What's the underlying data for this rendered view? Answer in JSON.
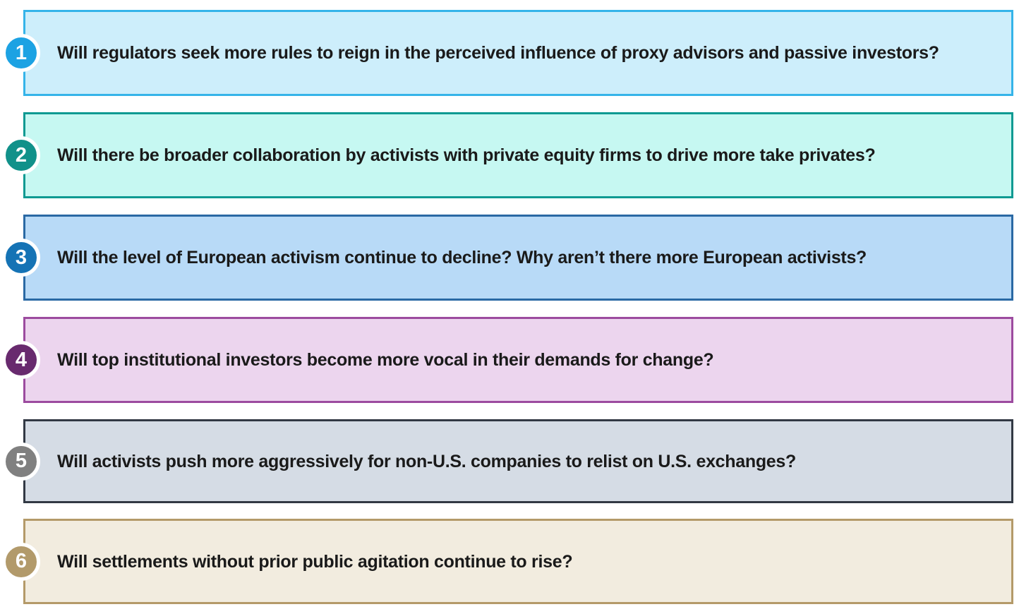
{
  "text_color": "#1a1a1a",
  "badge_text_color": "#ffffff",
  "questions": [
    {
      "number": "1",
      "text": "Will regulators seek more rules to reign in the perceived influence of proxy advisors and passive investors?",
      "colors": {
        "bg": "#cdeefb",
        "border": "#35b4e9",
        "badge": "#1ca2e3"
      }
    },
    {
      "number": "2",
      "text": "Will there be broader collaboration by activists with private equity firms to drive more take privates?",
      "colors": {
        "bg": "#c6f8f2",
        "border": "#0d9a92",
        "badge": "#11918a"
      }
    },
    {
      "number": "3",
      "text": "Will the level of European activism continue to decline? Why aren’t there more European activists?",
      "colors": {
        "bg": "#b8daf7",
        "border": "#2a69a4",
        "badge": "#1573b5"
      }
    },
    {
      "number": "4",
      "text": "Will top institutional investors become more vocal in their demands for change?",
      "colors": {
        "bg": "#ecd5ee",
        "border": "#9c4b9f",
        "badge": "#682a6e"
      }
    },
    {
      "number": "5",
      "text": "Will activists push more aggressively for non-U.S. companies to relist on U.S. exchanges?",
      "colors": {
        "bg": "#d5dce5",
        "border": "#323944",
        "badge": "#808080"
      }
    },
    {
      "number": "6",
      "text": "Will settlements without prior public agitation continue to rise?",
      "colors": {
        "bg": "#f2ecdf",
        "border": "#b49a69",
        "badge": "#b29a6b"
      }
    }
  ]
}
